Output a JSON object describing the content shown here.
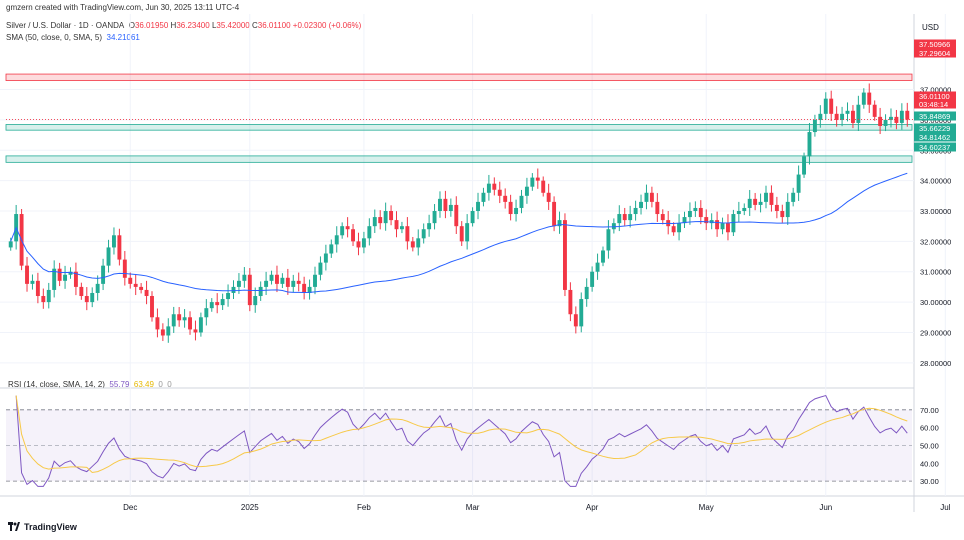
{
  "header": {
    "created": "gmzern created with TradingView.com, Jun 30, 2025 13:11 UTC-4",
    "symbol": "Silver / U.S. Dollar · 1D · OANDA",
    "ohlc": {
      "o_label": "O",
      "o": "36.01950",
      "h_label": "H",
      "h": "36.23400",
      "l_label": "L",
      "l": "35.42000",
      "c_label": "C",
      "c": "36.01100",
      "change": "+0.02300 (+0.06%)"
    },
    "sma_label": "SMA (50, close, 0, SMA, 5)",
    "sma_value": "34.21061",
    "rsi_label": "RSI (14, close, SMA, 14, 2)",
    "rsi_value": "55.79",
    "rsi_sma_value": "63.49",
    "rsi_extra1": "0",
    "rsi_extra2": "0"
  },
  "brand": "TradingView",
  "price_axis": {
    "currency": "USD",
    "badges": [
      {
        "value": "37.50966",
        "color": "#f23645"
      },
      {
        "value": "37.29604",
        "color": "#f23645"
      },
      {
        "value": "36.01100",
        "color": "#f23645"
      },
      {
        "value": "03:48:14",
        "color": "#f23645"
      },
      {
        "value": "35.84869",
        "color": "#22ab94"
      },
      {
        "value": "35.66229",
        "color": "#22ab94"
      },
      {
        "value": "34.81462",
        "color": "#22ab94"
      },
      {
        "value": "34.60237",
        "color": "#22ab94"
      }
    ]
  },
  "chart_data": {
    "type": "candlestick",
    "instrument": "Silver / U.S. Dollar",
    "timeframe": "1D",
    "ylim": [
      27.5,
      38.5
    ],
    "yticks": [
      28,
      29,
      30,
      31,
      32,
      33,
      34,
      35,
      36,
      37
    ],
    "ytick_labels": [
      "28.00000",
      "29.00000",
      "30.00000",
      "31.00000",
      "32.00000",
      "33.00000",
      "34.00000",
      "35.00000",
      "36.00000",
      "37.00000"
    ],
    "x_labels": [
      {
        "label": "Dec",
        "index": 22
      },
      {
        "label": "2025",
        "index": 44
      },
      {
        "label": "Feb",
        "index": 65
      },
      {
        "label": "Mar",
        "index": 85
      },
      {
        "label": "Apr",
        "index": 107
      },
      {
        "label": "May",
        "index": 128
      },
      {
        "label": "Jun",
        "index": 150
      },
      {
        "label": "Jul",
        "index": 172
      }
    ],
    "resistance_zone": [
      37.29604,
      37.50966
    ],
    "support_zones": [
      [
        35.66229,
        35.84869
      ],
      [
        34.60237,
        34.81462
      ]
    ],
    "current_price": 36.011,
    "close": [
      32.0,
      32.9,
      31.2,
      30.6,
      30.7,
      30.2,
      30.0,
      30.4,
      31.1,
      30.7,
      30.9,
      31.0,
      30.5,
      30.2,
      30.0,
      30.3,
      30.6,
      31.2,
      31.8,
      32.2,
      31.4,
      30.8,
      30.6,
      30.5,
      30.4,
      30.2,
      29.5,
      29.1,
      28.9,
      29.2,
      29.6,
      29.4,
      29.5,
      29.1,
      29.0,
      29.5,
      29.8,
      30.0,
      29.9,
      30.1,
      30.3,
      30.5,
      30.7,
      30.9,
      29.9,
      30.2,
      30.5,
      30.7,
      30.9,
      30.6,
      30.8,
      30.5,
      30.7,
      30.6,
      30.3,
      30.5,
      30.9,
      31.3,
      31.6,
      31.9,
      32.2,
      32.5,
      32.4,
      32.0,
      31.8,
      32.1,
      32.5,
      32.8,
      32.6,
      33.0,
      32.7,
      32.4,
      32.5,
      32.0,
      31.8,
      32.1,
      32.4,
      32.6,
      33.0,
      33.4,
      33.0,
      33.2,
      32.5,
      32.0,
      32.6,
      33.0,
      33.3,
      33.6,
      33.9,
      33.7,
      33.5,
      33.3,
      32.9,
      33.1,
      33.5,
      33.8,
      34.1,
      34.0,
      33.6,
      33.3,
      32.5,
      32.7,
      30.4,
      29.6,
      29.2,
      30.1,
      30.5,
      31.0,
      31.3,
      31.7,
      32.4,
      32.6,
      32.9,
      32.7,
      32.9,
      33.1,
      33.3,
      33.6,
      33.3,
      32.9,
      32.7,
      32.5,
      32.3,
      32.6,
      32.8,
      33.0,
      33.1,
      32.8,
      32.6,
      32.7,
      32.4,
      32.6,
      32.3,
      32.9,
      33.0,
      33.1,
      33.4,
      33.2,
      33.3,
      33.6,
      33.2,
      33.0,
      32.8,
      33.3,
      33.6,
      34.2,
      34.8,
      35.6,
      36.0,
      36.2,
      36.7,
      36.2,
      36.0,
      36.2,
      36.3,
      35.9,
      36.5,
      36.9,
      36.5,
      36.1,
      35.8,
      36.0,
      36.1,
      35.9,
      36.3,
      36.01
    ],
    "rsi_ylim": [
      25,
      80
    ],
    "rsi_ticks": [
      30,
      40,
      50,
      60,
      70
    ],
    "rsi_tick_labels": [
      "30.00",
      "40.00",
      "50.00",
      "60.00",
      "70.00"
    ],
    "rsi_levels": {
      "overbought": 70,
      "middle": 50,
      "oversold": 30
    },
    "series": [
      {
        "name": "SMA (50, close, 0, SMA, 5)",
        "color": "#2962ff"
      },
      {
        "name": "RSI (14, close, SMA, 14, 2)",
        "color": "#7e57c2"
      },
      {
        "name": "RSI SMA",
        "color": "#f7c948"
      }
    ]
  }
}
